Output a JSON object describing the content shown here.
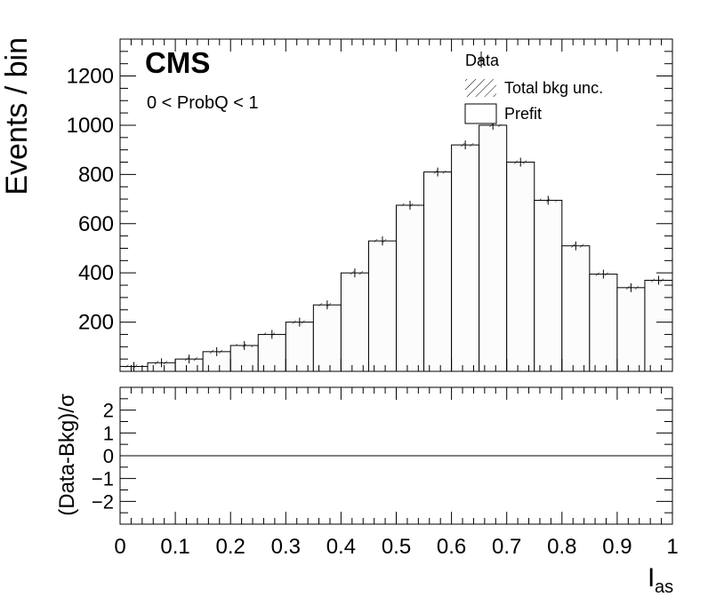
{
  "chart_data": {
    "type": "histogram",
    "experiment_label": "CMS",
    "selection_label": "0 < ProbQ < 1",
    "ylabel": "Events / bin",
    "xlabel_main": "I",
    "xlabel_sub": "as",
    "xlim": [
      0,
      1
    ],
    "ylim": [
      0,
      1350
    ],
    "x_ticks": [
      0,
      0.1,
      0.2,
      0.3,
      0.4,
      0.5,
      0.6,
      0.7,
      0.8,
      0.9,
      1
    ],
    "x_tick_labels": [
      "0",
      "0.1",
      "0.2",
      "0.3",
      "0.4",
      "0.5",
      "0.6",
      "0.7",
      "0.8",
      "0.9",
      "1"
    ],
    "y_ticks": [
      200,
      400,
      600,
      800,
      1000,
      1200
    ],
    "y_tick_labels": [
      "200",
      "400",
      "600",
      "800",
      "1000",
      "1200"
    ],
    "bin_edges": [
      0,
      0.05,
      0.1,
      0.15,
      0.2,
      0.25,
      0.3,
      0.35,
      0.4,
      0.45,
      0.5,
      0.55,
      0.6,
      0.65,
      0.7,
      0.75,
      0.8,
      0.85,
      0.9,
      0.95,
      1.0
    ],
    "series": [
      {
        "name": "Prefit",
        "values": [
          20,
          35,
          50,
          80,
          105,
          150,
          200,
          270,
          400,
          530,
          675,
          810,
          920,
          1000,
          850,
          695,
          510,
          395,
          340,
          370
        ]
      }
    ],
    "legend": {
      "position": "top-right",
      "entries": [
        {
          "label": "Data",
          "style": "marker"
        },
        {
          "label": "Total bkg unc.",
          "style": "hatch"
        },
        {
          "label": "Prefit",
          "style": "box"
        }
      ]
    },
    "ratio_panel": {
      "ylabel": "(Data-Bkg)/σ",
      "ylim": [
        -3,
        3
      ],
      "y_ticks": [
        2,
        1,
        0,
        -1,
        -2
      ],
      "y_tick_labels": [
        "2",
        "1",
        "0",
        "−1",
        "−2"
      ],
      "reference_line": 0
    },
    "colors": {
      "fill": "#fcfcfc",
      "line": "#000000"
    }
  }
}
